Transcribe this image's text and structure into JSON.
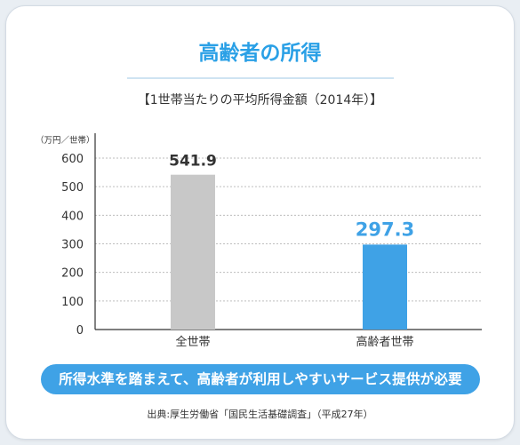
{
  "title": "高齢者の所得",
  "subtitle": "【1世帯当たりの平均所得金額（2014年）】",
  "banner": "所得水準を踏まえて、高齢者が利用しやすいサービス提供が必要",
  "source": "出典:厚生労働省「国民生活基礎調査」（平成27年）",
  "chart_data": {
    "type": "bar",
    "unit_label": "（万円／世帯）",
    "categories": [
      "全世帯",
      "高齢者世帯"
    ],
    "values": [
      541.9,
      297.3
    ],
    "value_labels": [
      "541.9",
      "297.3"
    ],
    "colors": [
      "#c8c8c8",
      "#3fa2e6"
    ],
    "label_colors": [
      "#333333",
      "#3fa2e6"
    ],
    "ylim": [
      0,
      600
    ],
    "yticks": [
      "0",
      "100",
      "200",
      "300",
      "400",
      "500",
      "600"
    ],
    "grid": true
  }
}
